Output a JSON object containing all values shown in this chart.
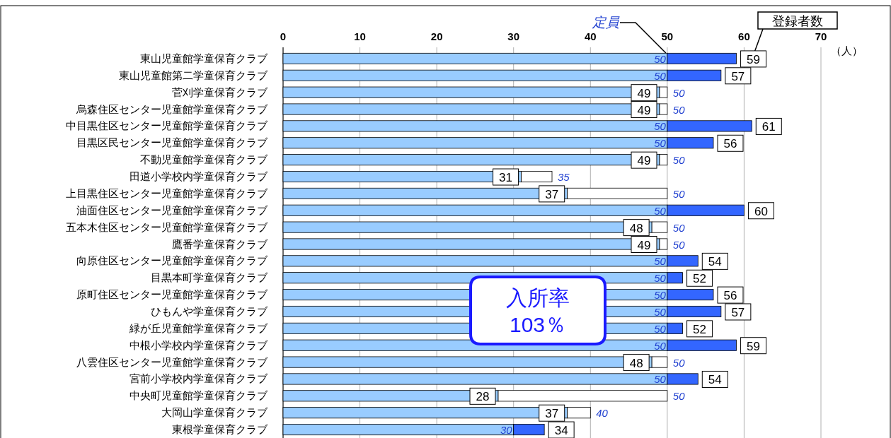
{
  "chart_data": {
    "type": "bar",
    "orientation": "horizontal",
    "stacked": true,
    "grid": "x",
    "legend": false,
    "xlabel": "（人）",
    "xlim": [
      0,
      70
    ],
    "xticks": [
      0,
      10,
      20,
      30,
      40,
      50,
      60,
      70
    ],
    "categories": [
      "東山児童館学童保育クラブ",
      "東山児童館第二学童保育クラブ",
      "菅刈学童保育クラブ",
      "烏森住区センター児童館学童保育クラブ",
      "中目黒住区センター児童館学童保育クラブ",
      "目黒区民センター児童館学童保育クラブ",
      "不動児童館学童保育クラブ",
      "田道小学校内学童保育クラブ",
      "上目黒住区センター児童館学童保育クラブ",
      "油面住区センター児童館学童保育クラブ",
      "五本木住区センター児童館学童保育クラブ",
      "鷹番学童保育クラブ",
      "向原住区センター児童館学童保育クラブ",
      "目黒本町学童保育クラブ",
      "原町住区センター児童館学童保育クラブ",
      "ひもんや学童保育クラブ",
      "緑が丘児童館学童保育クラブ",
      "中根小学校内学童保育クラブ",
      "八雲住区センター児童館学童保育クラブ",
      "宮前小学校内学童保育クラブ",
      "中央町児童館学童保育クラブ",
      "大岡山学童保育クラブ",
      "東根学童保育クラブ"
    ],
    "series": [
      {
        "color": "#99ccff",
        "values": [
          50,
          50,
          49,
          49,
          50,
          50,
          49,
          31,
          37,
          50,
          48,
          49,
          50,
          50,
          50,
          50,
          50,
          50,
          48,
          50,
          28,
          37,
          30
        ],
        "value_labels": [
          "50",
          "50",
          "49",
          "49",
          "50",
          "50",
          "49",
          "31",
          "37",
          "50",
          "48",
          "49",
          "50",
          "50",
          "50",
          "50",
          "50",
          "50",
          "48",
          "50",
          "28",
          "37",
          "30"
        ]
      },
      {
        "color": "#ffffff",
        "values": [
          0,
          0,
          1,
          1,
          0,
          0,
          1,
          4,
          13,
          0,
          2,
          1,
          0,
          0,
          0,
          0,
          0,
          0,
          2,
          0,
          22,
          3,
          0
        ]
      },
      {
        "color": "#3366ff",
        "values": [
          9,
          7,
          0,
          0,
          11,
          6,
          0,
          0,
          0,
          10,
          0,
          0,
          4,
          2,
          6,
          7,
          2,
          9,
          0,
          4,
          0,
          0,
          4
        ]
      }
    ],
    "annotations": [
      {
        "text": "定員",
        "x": 50,
        "y": "東山児童館学童保育クラブ"
      },
      "登録者数",
      "入所率\n103％",
      {
        "text": "59",
        "x": 59,
        "y": "東山児童館学童保育クラブ"
      },
      {
        "text": "57",
        "x": 57,
        "y": "東山児童館第二学童保育クラブ"
      },
      {
        "text": "50",
        "x": 50,
        "y": "菅刈学童保育クラブ"
      },
      {
        "text": "50",
        "x": 50,
        "y": "烏森住区センター児童館学童保育クラブ"
      },
      {
        "text": "61",
        "x": 61,
        "y": "中目黒住区センター児童館学童保育クラブ"
      },
      {
        "text": "56",
        "x": 56,
        "y": "目黒区民センター児童館学童保育クラブ"
      },
      {
        "text": "50",
        "x": 50,
        "y": "不動児童館学童保育クラブ"
      },
      {
        "text": "35",
        "x": 35,
        "y": "田道小学校内学童保育クラブ"
      },
      {
        "text": "50",
        "x": 50,
        "y": "上目黒住区センター児童館学童保育クラブ"
      },
      {
        "text": "60",
        "x": 60,
        "y": "油面住区センター児童館学童保育クラブ"
      },
      {
        "text": "50",
        "x": 50,
        "y": "五本木住区センター児童館学童保育クラブ"
      },
      {
        "text": "50",
        "x": 50,
        "y": "鷹番学童保育クラブ"
      },
      {
        "text": "54",
        "x": 54,
        "y": "向原住区センター児童館学童保育クラブ"
      },
      {
        "text": "52",
        "x": 52,
        "y": "目黒本町学童保育クラブ"
      },
      {
        "text": "56",
        "x": 56,
        "y": "原町住区センター児童館学童保育クラブ"
      },
      {
        "text": "57",
        "x": 57,
        "y": "ひもんや学童保育クラブ"
      },
      {
        "text": "52",
        "x": 52,
        "y": "緑が丘児童館学童保育クラブ"
      },
      {
        "text": "59",
        "x": 59,
        "y": "中根小学校内学童保育クラブ"
      },
      {
        "text": "50",
        "x": 50,
        "y": "八雲住区センター児童館学童保育クラブ"
      },
      {
        "text": "54",
        "x": 54,
        "y": "宮前小学校内学童保育クラブ"
      },
      {
        "text": "50",
        "x": 50,
        "y": "中央町児童館学童保育クラブ"
      },
      {
        "text": "40",
        "x": 40,
        "y": "大岡山学童保育クラブ"
      },
      {
        "text": "34",
        "x": 34,
        "y": "東根学童保育クラブ"
      }
    ]
  }
}
